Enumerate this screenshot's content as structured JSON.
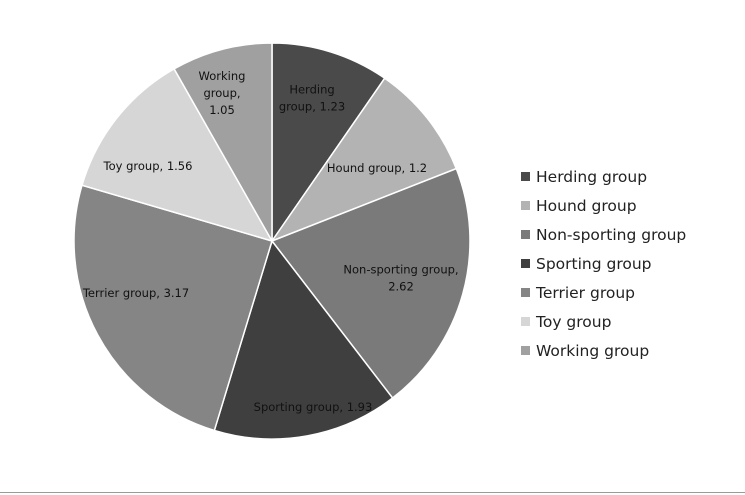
{
  "chart_data": {
    "type": "pie",
    "title": "",
    "start_angle_deg": 0,
    "direction": "clockwise",
    "slices": [
      {
        "category": "Herding group",
        "value": 1.23,
        "label": "Herding group, 1.23",
        "color": "#4a4a4a"
      },
      {
        "category": "Hound group",
        "value": 1.2,
        "label": "Hound group, 1.2",
        "color": "#b3b3b3"
      },
      {
        "category": "Non-sporting group",
        "value": 2.62,
        "label": "Non-sporting group, 2.62",
        "color": "#7a7a7a"
      },
      {
        "category": "Sporting group",
        "value": 1.93,
        "label": "Sporting group, 1.93",
        "color": "#3f3f3f"
      },
      {
        "category": "Terrier group",
        "value": 3.17,
        "label": "Terrier group, 3.17",
        "color": "#858585"
      },
      {
        "category": "Toy group",
        "value": 1.56,
        "label": "Toy group, 1.56",
        "color": "#d6d6d6"
      },
      {
        "category": "Working group",
        "value": 1.05,
        "label": "Working group, 1.05",
        "color": "#a0a0a0"
      }
    ],
    "legend": {
      "position": "right",
      "entries": [
        "Herding group",
        "Hound group",
        "Non-sporting group",
        "Sporting group",
        "Terrier group",
        "Toy group",
        "Working group"
      ]
    }
  }
}
